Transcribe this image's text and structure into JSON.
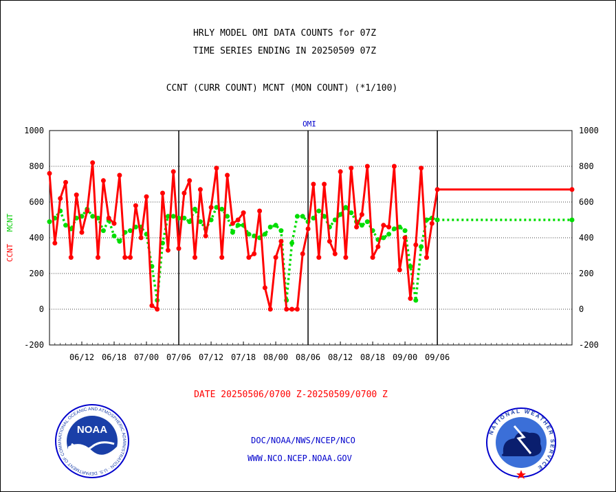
{
  "header": {
    "title_line1": "HRLY MODEL OMI DATA COUNTS for 07Z",
    "title_line2": "TIME SERIES ENDING IN 20250509 07Z",
    "subtitle": "CCNT (CURR COUNT) MCNT (MON COUNT) (*1/100)"
  },
  "footer": {
    "date_range": "DATE 20250506/0700 Z-20250509/0700 Z",
    "org_path": "DOC/NOAA/NWS/NCEP/NCO",
    "website": "WWW.NCO.NCEP.NOAA.GOV"
  },
  "logos": {
    "noaa_text": "NOAA",
    "noaa_ring": "NATIONAL OCEANIC AND ATMOSPHERIC ADMINISTRATION · U.S. DEPARTMENT OF COMMERCE",
    "nws_ring": "NATIONAL WEATHER SERVICE"
  },
  "colors": {
    "ccnt": "#ff0000",
    "mcnt": "#00dd00",
    "grid": "#000000",
    "text_blue": "#0000cc",
    "text_red": "#ff0000"
  },
  "chart_data": {
    "type": "line",
    "panel_label": "OMI",
    "ylabel_left_ccnt": "CCNT",
    "ylabel_left_mcnt": "MCNT",
    "ylim": [
      -200,
      1000
    ],
    "yticks": [
      -200,
      0,
      200,
      400,
      600,
      800,
      1000
    ],
    "grid": true,
    "x_start_day": 0,
    "x_end_day": 97,
    "xticks": [
      {
        "day": 6,
        "label": "06/12"
      },
      {
        "day": 12,
        "label": "06/18"
      },
      {
        "day": 18,
        "label": "07/00"
      },
      {
        "day": 24,
        "label": "07/06"
      },
      {
        "day": 30,
        "label": "07/12"
      },
      {
        "day": 36,
        "label": "07/18"
      },
      {
        "day": 42,
        "label": "08/00"
      },
      {
        "day": 48,
        "label": "08/06"
      },
      {
        "day": 54,
        "label": "08/12"
      },
      {
        "day": 60,
        "label": "08/18"
      },
      {
        "day": 66,
        "label": "09/00"
      },
      {
        "day": 72,
        "label": "09/06"
      }
    ],
    "vertical_lines_day": [
      24,
      48,
      72
    ],
    "series": [
      {
        "name": "CCNT",
        "x": [
          0,
          1,
          2,
          3,
          4,
          5,
          6,
          7,
          8,
          9,
          10,
          11,
          12,
          13,
          14,
          15,
          16,
          17,
          18,
          19,
          20,
          21,
          22,
          23,
          24,
          25,
          26,
          27,
          28,
          29,
          30,
          31,
          32,
          33,
          34,
          35,
          36,
          37,
          38,
          39,
          40,
          41,
          42,
          43,
          44,
          45,
          46,
          47,
          48,
          49,
          50,
          51,
          52,
          53,
          54,
          55,
          56,
          57,
          58,
          59,
          60,
          61,
          62,
          63,
          64,
          65,
          66,
          67,
          68,
          69,
          70,
          71,
          72,
          73,
          74,
          75,
          76,
          77,
          78,
          79,
          80,
          81,
          82,
          83,
          84,
          85,
          86,
          87,
          88,
          89,
          90,
          91,
          92,
          93,
          94,
          95,
          96,
          97
        ],
        "values": [
          760,
          370,
          620,
          710,
          290,
          640,
          430,
          550,
          820,
          290,
          720,
          510,
          480,
          750,
          290,
          290,
          580,
          400,
          630,
          20,
          0,
          650,
          330,
          770,
          340,
          650,
          720,
          290,
          670,
          410,
          570,
          790,
          290,
          750,
          480,
          500,
          540,
          290,
          310,
          550,
          120,
          0,
          290,
          380,
          0,
          0,
          0,
          310,
          450,
          700,
          290,
          700,
          380,
          310,
          770,
          290,
          790,
          460,
          530,
          800,
          290,
          350,
          470,
          460,
          800,
          220,
          400,
          60,
          360,
          790,
          290,
          480,
          670,
          670,
          670,
          670,
          670,
          670,
          670,
          670,
          670,
          670,
          670,
          670,
          670,
          670,
          670,
          670,
          670,
          670,
          670,
          670,
          670,
          670,
          670,
          670,
          670,
          670
        ]
      },
      {
        "name": "MCNT",
        "x": [
          0,
          1,
          2,
          3,
          4,
          5,
          6,
          7,
          8,
          9,
          10,
          11,
          12,
          13,
          14,
          15,
          16,
          17,
          18,
          19,
          20,
          21,
          22,
          23,
          24,
          25,
          26,
          27,
          28,
          29,
          30,
          31,
          32,
          33,
          34,
          35,
          36,
          37,
          38,
          39,
          40,
          41,
          42,
          43,
          44,
          45,
          46,
          47,
          48,
          49,
          50,
          51,
          52,
          53,
          54,
          55,
          56,
          57,
          58,
          59,
          60,
          61,
          62,
          63,
          64,
          65,
          66,
          67,
          68,
          69,
          70,
          71,
          72,
          73,
          74,
          75,
          76,
          77,
          78,
          79,
          80,
          81,
          82,
          83,
          84,
          85,
          86,
          87,
          88,
          89,
          90,
          91,
          92,
          93,
          94,
          95,
          96,
          97
        ],
        "values": [
          490,
          510,
          550,
          470,
          450,
          510,
          520,
          560,
          520,
          510,
          440,
          500,
          410,
          380,
          430,
          440,
          460,
          460,
          420,
          240,
          50,
          370,
          520,
          520,
          510,
          510,
          490,
          560,
          490,
          450,
          500,
          570,
          560,
          520,
          430,
          470,
          470,
          420,
          410,
          400,
          420,
          460,
          470,
          440,
          50,
          370,
          520,
          520,
          490,
          510,
          550,
          520,
          460,
          500,
          530,
          570,
          540,
          490,
          470,
          490,
          440,
          390,
          400,
          420,
          450,
          460,
          440,
          240,
          50,
          350,
          500,
          510,
          500,
          500,
          500,
          500,
          500,
          500,
          500,
          500,
          500,
          500,
          500,
          500,
          500,
          500,
          500,
          500,
          500,
          500,
          500,
          500,
          500,
          500,
          500,
          500,
          500,
          500
        ]
      }
    ]
  }
}
